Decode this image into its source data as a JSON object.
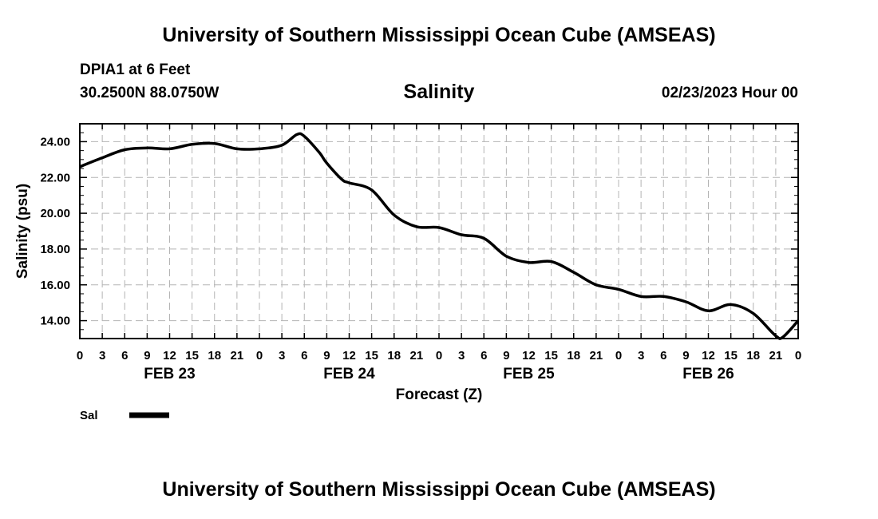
{
  "header": {
    "org_title": "University of Southern Mississippi Ocean Cube (AMSEAS)",
    "station": "DPIA1 at 6 Feet",
    "coords": "30.2500N  88.0750W",
    "date": "02/23/2023 Hour 00"
  },
  "footer": {
    "org_title": "University of Southern Mississippi Ocean Cube (AMSEAS)"
  },
  "chart_data": {
    "type": "line",
    "title": "Salinity",
    "xlabel": "Forecast (Z)",
    "ylabel": "Salinity (psu)",
    "ylim": [
      13,
      25
    ],
    "xlim": [
      0,
      96
    ],
    "yticks": [
      14,
      16,
      18,
      20,
      22,
      24
    ],
    "ytick_labels": [
      "14.00",
      "16.00",
      "18.00",
      "20.00",
      "22.00",
      "24.00"
    ],
    "xticks": [
      0,
      3,
      6,
      9,
      12,
      15,
      18,
      21,
      24,
      27,
      30,
      33,
      36,
      39,
      42,
      45,
      48,
      51,
      54,
      57,
      60,
      63,
      66,
      69,
      72,
      75,
      78,
      81,
      84,
      87,
      90,
      93,
      96
    ],
    "xtick_labels": [
      "0",
      "3",
      "6",
      "9",
      "12",
      "15",
      "18",
      "21",
      "0",
      "3",
      "6",
      "9",
      "12",
      "15",
      "18",
      "21",
      "0",
      "3",
      "6",
      "9",
      "12",
      "15",
      "18",
      "21",
      "0",
      "3",
      "6",
      "9",
      "12",
      "15",
      "18",
      "21",
      "0"
    ],
    "day_labels": [
      {
        "hour": 12,
        "label": "FEB 23"
      },
      {
        "hour": 36,
        "label": "FEB 24"
      },
      {
        "hour": 60,
        "label": "FEB 25"
      },
      {
        "hour": 84,
        "label": "FEB 26"
      }
    ],
    "grid": true,
    "series": [
      {
        "name": "Sal",
        "x": [
          0,
          3,
          6,
          9,
          12,
          15,
          18,
          21,
          24,
          27,
          29,
          30,
          32,
          33,
          35,
          36,
          39,
          42,
          45,
          48,
          51,
          54,
          57,
          60,
          63,
          66,
          69,
          72,
          75,
          78,
          81,
          84,
          87,
          90,
          93,
          94,
          96
        ],
        "values": [
          22.6,
          23.1,
          23.55,
          23.65,
          23.6,
          23.85,
          23.9,
          23.6,
          23.6,
          23.8,
          24.4,
          24.3,
          23.4,
          22.8,
          21.9,
          21.7,
          21.3,
          19.9,
          19.25,
          19.2,
          18.8,
          18.6,
          17.6,
          17.25,
          17.3,
          16.7,
          16.0,
          15.75,
          15.35,
          15.35,
          15.05,
          14.55,
          14.9,
          14.4,
          13.15,
          13.1,
          14.0
        ]
      }
    ],
    "legend": {
      "position": "bottom-left",
      "entries": [
        "Sal"
      ]
    }
  }
}
